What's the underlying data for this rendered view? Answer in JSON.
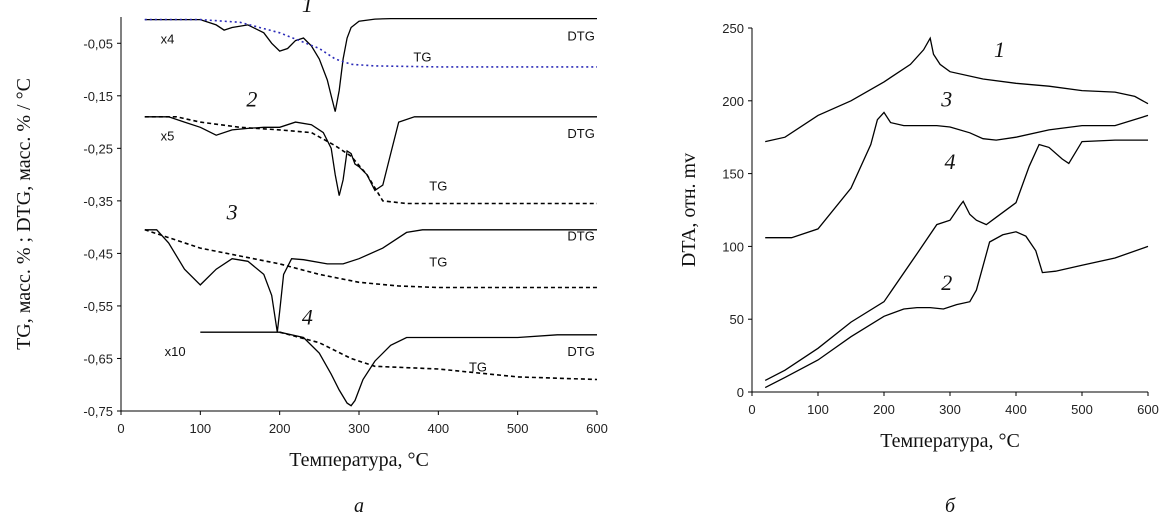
{
  "chart_data": [
    {
      "panel": "a",
      "type": "line",
      "xlabel": "Температура, °C",
      "ylabel": "TG, масс. % ; DTG, масс. % / °C",
      "xlim": [
        0,
        600
      ],
      "ylim": [
        -0.75,
        0.0
      ],
      "xticks": [
        "0",
        "100",
        "200",
        "300",
        "400",
        "500",
        "600"
      ],
      "yticks": [
        {
          "value": -0.05,
          "label": "-0,05"
        },
        {
          "value": -0.15,
          "label": "-0,15"
        },
        {
          "value": -0.25,
          "label": "-0,25"
        },
        {
          "value": -0.35,
          "label": "-0,35"
        },
        {
          "value": -0.45,
          "label": "-0,45"
        },
        {
          "value": -0.55,
          "label": "-0,55"
        },
        {
          "value": -0.65,
          "label": "-0,65"
        },
        {
          "value": -0.75,
          "label": "-0,75"
        }
      ],
      "series": [
        {
          "name": "DTG",
          "group": "1",
          "style": "solid",
          "color": "#000000",
          "x": [
            30,
            100,
            120,
            130,
            140,
            160,
            180,
            190,
            200,
            210,
            220,
            230,
            240,
            250,
            260,
            265,
            270,
            275,
            280,
            285,
            290,
            300,
            320,
            340,
            400,
            500,
            600
          ],
          "y": [
            -0.005,
            -0.005,
            -0.015,
            -0.025,
            -0.02,
            -0.015,
            -0.03,
            -0.05,
            -0.065,
            -0.06,
            -0.045,
            -0.04,
            -0.055,
            -0.08,
            -0.12,
            -0.15,
            -0.18,
            -0.14,
            -0.08,
            -0.04,
            -0.02,
            -0.008,
            -0.004,
            -0.003,
            -0.003,
            -0.003,
            -0.003
          ]
        },
        {
          "name": "TG",
          "group": "1",
          "style": "dotted",
          "color": "#2b2bb8",
          "x": [
            30,
            100,
            150,
            200,
            250,
            270,
            290,
            320,
            400,
            500,
            600
          ],
          "y": [
            -0.005,
            -0.005,
            -0.01,
            -0.03,
            -0.06,
            -0.08,
            -0.09,
            -0.093,
            -0.095,
            -0.095,
            -0.095
          ]
        },
        {
          "name": "DTG",
          "group": "2",
          "style": "solid",
          "color": "#000000",
          "x": [
            30,
            60,
            80,
            100,
            120,
            140,
            160,
            180,
            200,
            220,
            240,
            255,
            265,
            270,
            275,
            280,
            285,
            290,
            295,
            300,
            310,
            320,
            330,
            340,
            350,
            370,
            400,
            500,
            600
          ],
          "y": [
            -0.19,
            -0.19,
            -0.2,
            -0.21,
            -0.225,
            -0.215,
            -0.212,
            -0.21,
            -0.21,
            -0.2,
            -0.205,
            -0.22,
            -0.25,
            -0.3,
            -0.34,
            -0.31,
            -0.255,
            -0.26,
            -0.28,
            -0.285,
            -0.3,
            -0.33,
            -0.32,
            -0.26,
            -0.2,
            -0.19,
            -0.19,
            -0.19,
            -0.19
          ]
        },
        {
          "name": "TG",
          "group": "2",
          "style": "dashed",
          "color": "#000000",
          "x": [
            30,
            70,
            100,
            150,
            200,
            240,
            270,
            290,
            310,
            330,
            360,
            400,
            500,
            600
          ],
          "y": [
            -0.19,
            -0.19,
            -0.2,
            -0.21,
            -0.215,
            -0.22,
            -0.245,
            -0.265,
            -0.3,
            -0.35,
            -0.355,
            -0.355,
            -0.355,
            -0.355
          ]
        },
        {
          "name": "DTG",
          "group": "3",
          "style": "solid",
          "color": "#000000",
          "x": [
            30,
            45,
            60,
            80,
            100,
            120,
            140,
            160,
            180,
            190,
            197,
            200,
            205,
            215,
            230,
            260,
            280,
            300,
            330,
            360,
            380,
            400,
            500,
            600
          ],
          "y": [
            -0.405,
            -0.405,
            -0.43,
            -0.48,
            -0.51,
            -0.48,
            -0.46,
            -0.465,
            -0.49,
            -0.53,
            -0.6,
            -0.56,
            -0.49,
            -0.46,
            -0.462,
            -0.47,
            -0.47,
            -0.46,
            -0.44,
            -0.41,
            -0.405,
            -0.405,
            -0.405,
            -0.405
          ]
        },
        {
          "name": "TG",
          "group": "3",
          "style": "dashed",
          "color": "#000000",
          "x": [
            30,
            60,
            100,
            150,
            200,
            250,
            300,
            350,
            400,
            500,
            600
          ],
          "y": [
            -0.405,
            -0.42,
            -0.44,
            -0.455,
            -0.47,
            -0.49,
            -0.505,
            -0.512,
            -0.515,
            -0.515,
            -0.515
          ]
        },
        {
          "name": "DTG",
          "group": "4",
          "style": "solid",
          "color": "#000000",
          "x": [
            100,
            200,
            230,
            250,
            265,
            275,
            285,
            290,
            295,
            305,
            320,
            340,
            360,
            400,
            450,
            500,
            550,
            600
          ],
          "y": [
            -0.6,
            -0.6,
            -0.61,
            -0.64,
            -0.68,
            -0.71,
            -0.735,
            -0.74,
            -0.73,
            -0.69,
            -0.655,
            -0.625,
            -0.61,
            -0.61,
            -0.61,
            -0.61,
            -0.605,
            -0.605
          ],
          "note": "x10"
        },
        {
          "name": "TG",
          "group": "4",
          "style": "dashed",
          "color": "#000000",
          "x": [
            200,
            250,
            290,
            320,
            400,
            500,
            600
          ],
          "y": [
            -0.6,
            -0.62,
            -0.65,
            -0.665,
            -0.67,
            -0.685,
            -0.69
          ]
        }
      ],
      "multipliers": [
        {
          "label": "x4",
          "x": 50,
          "y": -0.05
        },
        {
          "label": "x5",
          "x": 50,
          "y": -0.235
        },
        {
          "label": "x10",
          "x": 55,
          "y": -0.645
        }
      ],
      "curve_labels": [
        {
          "label": "DTG",
          "x": 580,
          "y": -0.045
        },
        {
          "label": "TG",
          "x": 380,
          "y": -0.085
        },
        {
          "label": "DTG",
          "x": 580,
          "y": -0.23
        },
        {
          "label": "TG",
          "x": 400,
          "y": -0.33
        },
        {
          "label": "DTG",
          "x": 580,
          "y": -0.425
        },
        {
          "label": "TG",
          "x": 400,
          "y": -0.475
        },
        {
          "label": "DTG",
          "x": 580,
          "y": -0.645
        },
        {
          "label": "TG",
          "x": 450,
          "y": -0.675
        }
      ],
      "number_labels": [
        {
          "label": "1",
          "x": 235,
          "y": 0.01
        },
        {
          "label": "2",
          "x": 165,
          "y": -0.17
        },
        {
          "label": "3",
          "x": 140,
          "y": -0.385
        },
        {
          "label": "4",
          "x": 235,
          "y": -0.585
        }
      ],
      "panel_letter": "а"
    },
    {
      "panel": "b",
      "type": "line",
      "xlabel": "Температура, °C",
      "ylabel": "DTA, отн. mv",
      "xlim": [
        0,
        600
      ],
      "ylim": [
        0,
        250
      ],
      "xticks": [
        "0",
        "100",
        "200",
        "300",
        "400",
        "500",
        "600"
      ],
      "yticks": [
        "0",
        "50",
        "100",
        "150",
        "200",
        "250"
      ],
      "series": [
        {
          "label": "1",
          "x": [
            20,
            50,
            100,
            150,
            200,
            240,
            260,
            270,
            275,
            285,
            300,
            350,
            400,
            450,
            500,
            550,
            580,
            600
          ],
          "y": [
            172,
            175,
            190,
            200,
            213,
            225,
            235,
            243,
            232,
            225,
            220,
            215,
            212,
            210,
            207,
            206,
            203,
            198
          ]
        },
        {
          "label": "2",
          "x": [
            20,
            50,
            100,
            150,
            200,
            230,
            250,
            270,
            290,
            310,
            330,
            340,
            360,
            380,
            400,
            415,
            430,
            440,
            460,
            500,
            550,
            600
          ],
          "y": [
            3,
            10,
            22,
            38,
            52,
            57,
            58,
            58,
            57,
            60,
            62,
            70,
            103,
            108,
            110,
            107,
            97,
            82,
            83,
            87,
            92,
            100
          ]
        },
        {
          "label": "3",
          "x": [
            20,
            60,
            100,
            150,
            180,
            190,
            200,
            210,
            230,
            260,
            280,
            300,
            330,
            350,
            370,
            400,
            450,
            500,
            550,
            600
          ],
          "y": [
            106,
            106,
            112,
            140,
            170,
            187,
            192,
            185,
            183,
            183,
            183,
            182,
            178,
            174,
            173,
            175,
            180,
            183,
            183,
            190
          ]
        },
        {
          "label": "4",
          "x": [
            20,
            50,
            100,
            150,
            200,
            250,
            280,
            300,
            315,
            320,
            330,
            340,
            355,
            370,
            400,
            420,
            435,
            450,
            470,
            480,
            500,
            550,
            600
          ],
          "y": [
            8,
            15,
            30,
            48,
            62,
            95,
            115,
            118,
            128,
            131,
            122,
            118,
            115,
            120,
            130,
            155,
            170,
            168,
            160,
            157,
            172,
            173,
            173
          ]
        }
      ],
      "number_labels": [
        {
          "label": "1",
          "x": 375,
          "y": 230
        },
        {
          "label": "2",
          "x": 295,
          "y": 70
        },
        {
          "label": "3",
          "x": 295,
          "y": 196
        },
        {
          "label": "4",
          "x": 300,
          "y": 153
        }
      ],
      "panel_letter": "б"
    }
  ]
}
